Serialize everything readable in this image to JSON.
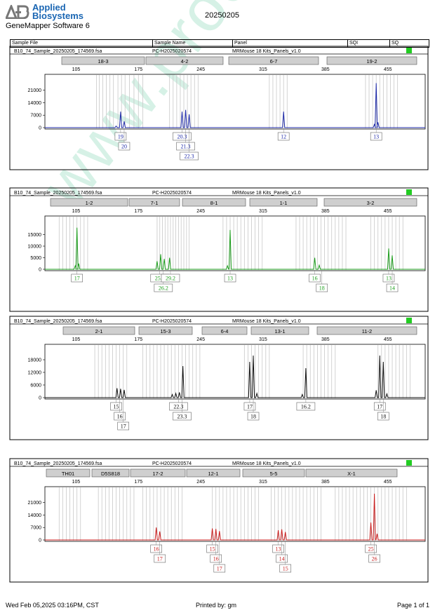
{
  "header": {
    "logo_text": "AB",
    "brand_line1": "Applied",
    "brand_line2": "Biosystems",
    "app_title": "GeneMapper Software 6",
    "run_date": "20250205"
  },
  "table_header": {
    "sample_file": "Sample File",
    "sample_name": "Sample Name",
    "panel": "Panel",
    "sqi": "SQI",
    "sq": "SQ"
  },
  "footer": {
    "date": "Wed Feb 05,2025 03:16PM, CST",
    "printed_by": "Printed by: gm",
    "page": "Page 1 of 1"
  },
  "watermark": "www.procell.com.cn",
  "colors": {
    "blue": "#1f2ba8",
    "green": "#1e9e1e",
    "black": "#111111",
    "red": "#c81e1e",
    "quality_ok": "#22cc22",
    "bin_bar": "#cfcfcf"
  },
  "chart_data": [
    {
      "type": "line",
      "dye": "blue",
      "sample_file": "B10_74_Sample_20250205_174569.fsa",
      "sample_name": "PC-H2025020574",
      "panel": "MRMouse 18 Kits_Panels_v1.0",
      "xlim": [
        70,
        497
      ],
      "x_ticks": [
        105,
        175,
        245,
        315,
        385,
        455
      ],
      "ylim": [
        0,
        26000
      ],
      "y_ticks": [
        0,
        7000,
        14000,
        21000
      ],
      "markers": [
        {
          "label": "18-3",
          "start": 88,
          "end": 206
        },
        {
          "label": "4-2",
          "start": 208,
          "end": 318
        },
        {
          "label": "6-7",
          "start": 326,
          "end": 454
        },
        {
          "label": "19-2",
          "start": 466,
          "end": 594
        }
      ],
      "bins": [
        128,
        131,
        135,
        139,
        143,
        147,
        152,
        156,
        160,
        165,
        170,
        175,
        180,
        210,
        214,
        218,
        222,
        226,
        230,
        234,
        238,
        242,
        322,
        326,
        330,
        334,
        338,
        342,
        430,
        434,
        438,
        442,
        446,
        450,
        454,
        458,
        462,
        466
      ],
      "peaks": [
        {
          "x": 155,
          "h": 9000
        },
        {
          "x": 159,
          "h": 3500
        },
        {
          "x": 150,
          "h": 900
        },
        {
          "x": 224,
          "h": 9000
        },
        {
          "x": 228,
          "h": 10000
        },
        {
          "x": 232,
          "h": 7500
        },
        {
          "x": 338,
          "h": 9000
        },
        {
          "x": 440,
          "h": 1800
        },
        {
          "x": 442,
          "h": 25000
        },
        {
          "x": 444,
          "h": 3000
        }
      ],
      "allele_calls": [
        {
          "label": "19",
          "x": 155,
          "row": 0
        },
        {
          "label": "20",
          "x": 159,
          "row": 1
        },
        {
          "label": "20.3",
          "x": 224,
          "row": 0
        },
        {
          "label": "21.3",
          "x": 228,
          "row": 1
        },
        {
          "label": "22.3",
          "x": 232,
          "row": 2
        },
        {
          "label": "12",
          "x": 338,
          "row": 0
        },
        {
          "label": "13",
          "x": 442,
          "row": 0
        }
      ]
    },
    {
      "type": "line",
      "dye": "green",
      "sample_file": "B10_74_Sample_20250205_174569.fsa",
      "sample_name": "PC-H2025020574",
      "panel": "MRMouse 18 Kits_Panels_v1.0",
      "xlim": [
        70,
        497
      ],
      "x_ticks": [
        105,
        175,
        245,
        315,
        385,
        455
      ],
      "ylim": [
        0,
        20000
      ],
      "y_ticks": [
        0,
        5000,
        10000,
        15000
      ],
      "markers": [
        {
          "label": "1-2",
          "start": 72,
          "end": 182
        },
        {
          "label": "7-1",
          "start": 184,
          "end": 256
        },
        {
          "label": "8-1",
          "start": 260,
          "end": 350
        },
        {
          "label": "1-1",
          "start": 356,
          "end": 452
        },
        {
          "label": "3-2",
          "start": 462,
          "end": 594
        }
      ],
      "bins": [
        86,
        90,
        94,
        98,
        102,
        106,
        110,
        114,
        118,
        196,
        199,
        202,
        205,
        208,
        211,
        214,
        217,
        220,
        223,
        226,
        229,
        232,
        270,
        274,
        278,
        282,
        286,
        290,
        294,
        298,
        302,
        306,
        310,
        314,
        352,
        356,
        360,
        364,
        368,
        372,
        376,
        380,
        384,
        388,
        392,
        396,
        400,
        404,
        408,
        436,
        440,
        444,
        448,
        452,
        456,
        460,
        464,
        468,
        472
      ],
      "peaks": [
        {
          "x": 106,
          "h": 18000
        },
        {
          "x": 108,
          "h": 2500
        },
        {
          "x": 104,
          "h": 1500
        },
        {
          "x": 196,
          "h": 3500
        },
        {
          "x": 200,
          "h": 6500
        },
        {
          "x": 204,
          "h": 4500
        },
        {
          "x": 210,
          "h": 5000
        },
        {
          "x": 278,
          "h": 17000
        },
        {
          "x": 275,
          "h": 1500
        },
        {
          "x": 373,
          "h": 5000
        },
        {
          "x": 378,
          "h": 1800
        },
        {
          "x": 456,
          "h": 9000
        },
        {
          "x": 460,
          "h": 6000
        }
      ],
      "allele_calls": [
        {
          "label": "17",
          "x": 106,
          "row": 0
        },
        {
          "label": "25.2",
          "x": 199,
          "row": 0
        },
        {
          "label": "26.2",
          "x": 203,
          "row": 1
        },
        {
          "label": "29.2",
          "x": 211,
          "row": 0
        },
        {
          "label": "13",
          "x": 278,
          "row": 0
        },
        {
          "label": "16",
          "x": 373,
          "row": 0
        },
        {
          "label": "18",
          "x": 381,
          "row": 1
        },
        {
          "label": "13",
          "x": 456,
          "row": 0
        },
        {
          "label": "14",
          "x": 460,
          "row": 1
        }
      ]
    },
    {
      "type": "line",
      "dye": "black",
      "sample_file": "B10_74_Sample_20250205_174569.fsa",
      "sample_name": "PC-H2025020574",
      "panel": "MRMouse 18 Kits_Panels_v1.0",
      "xlim": [
        70,
        497
      ],
      "x_ticks": [
        105,
        175,
        245,
        315,
        385,
        455
      ],
      "ylim": [
        0,
        22000
      ],
      "y_ticks": [
        0,
        6000,
        12000,
        18000
      ],
      "markers": [
        {
          "label": "2-1",
          "start": 90,
          "end": 192
        },
        {
          "label": "15-3",
          "start": 198,
          "end": 274
        },
        {
          "label": "6-4",
          "start": 288,
          "end": 352
        },
        {
          "label": "13-1",
          "start": 358,
          "end": 440
        },
        {
          "label": "11-2",
          "start": 452,
          "end": 594
        }
      ],
      "bins": [
        126,
        130,
        134,
        138,
        142,
        146,
        150,
        154,
        158,
        162,
        180,
        184,
        188,
        192,
        196,
        200,
        204,
        208,
        212,
        216,
        220,
        224,
        228,
        232,
        236,
        240,
        244,
        294,
        298,
        302,
        306,
        310,
        314,
        318,
        322,
        360,
        364,
        368,
        372,
        376,
        380,
        384,
        388,
        392,
        396,
        444,
        448,
        452,
        456,
        460,
        464,
        468,
        472,
        476,
        480
      ],
      "peaks": [
        {
          "x": 151,
          "h": 4500
        },
        {
          "x": 155,
          "h": 4200
        },
        {
          "x": 159,
          "h": 3700
        },
        {
          "x": 213,
          "h": 1500
        },
        {
          "x": 217,
          "h": 2000
        },
        {
          "x": 221,
          "h": 2500
        },
        {
          "x": 225,
          "h": 15000
        },
        {
          "x": 300,
          "h": 17000
        },
        {
          "x": 304,
          "h": 20000
        },
        {
          "x": 308,
          "h": 2000
        },
        {
          "x": 363,
          "h": 14000
        },
        {
          "x": 359,
          "h": 1500
        },
        {
          "x": 442,
          "h": 3500
        },
        {
          "x": 446,
          "h": 20000
        },
        {
          "x": 450,
          "h": 17000
        },
        {
          "x": 454,
          "h": 1800
        }
      ],
      "allele_calls": [
        {
          "label": "15",
          "x": 150,
          "row": 0
        },
        {
          "label": "16",
          "x": 154,
          "row": 1
        },
        {
          "label": "17",
          "x": 158,
          "row": 2
        },
        {
          "label": "22.3",
          "x": 220,
          "row": 0
        },
        {
          "label": "23.3",
          "x": 224,
          "row": 1
        },
        {
          "label": "17",
          "x": 300,
          "row": 0
        },
        {
          "label": "18",
          "x": 304,
          "row": 1
        },
        {
          "label": "16.2",
          "x": 363,
          "row": 0
        },
        {
          "label": "17",
          "x": 446,
          "row": 0
        },
        {
          "label": "18",
          "x": 450,
          "row": 1
        }
      ]
    },
    {
      "type": "line",
      "dye": "red",
      "sample_file": "B10_74_Sample_20250205_174569.fsa",
      "sample_name": "PC-H2025020574",
      "panel": "MRMouse 18 Kits_Panels_v1.0",
      "xlim": [
        70,
        497
      ],
      "x_ticks": [
        105,
        175,
        245,
        315,
        385,
        455
      ],
      "ylim": [
        0,
        26000
      ],
      "y_ticks": [
        0,
        7000,
        14000,
        21000
      ],
      "markers": [
        {
          "label": "TH01",
          "start": 66,
          "end": 128
        },
        {
          "label": "D5S818",
          "start": 131,
          "end": 184
        },
        {
          "label": "17-2",
          "start": 186,
          "end": 264
        },
        {
          "label": "12-1",
          "start": 266,
          "end": 342
        },
        {
          "label": "5-5",
          "start": 346,
          "end": 434
        },
        {
          "label": "X-1",
          "start": 436,
          "end": 566
        }
      ],
      "bins": [
        86,
        90,
        94,
        98,
        102,
        106,
        110,
        130,
        134,
        138,
        142,
        146,
        150,
        154,
        158,
        162,
        166,
        170,
        180,
        184,
        188,
        192,
        196,
        200,
        204,
        208,
        212,
        216,
        220,
        224,
        258,
        262,
        266,
        270,
        274,
        278,
        282,
        286,
        290,
        294,
        298,
        302,
        306,
        310,
        324,
        328,
        332,
        336,
        340,
        344,
        348,
        352,
        356,
        360,
        364,
        368,
        372,
        376,
        380,
        396,
        400,
        404,
        408,
        412,
        416,
        420,
        424,
        428,
        432,
        436,
        440,
        444,
        448,
        452,
        456,
        460,
        464,
        468,
        472,
        476
      ],
      "peaks": [
        {
          "x": 195,
          "h": 7000
        },
        {
          "x": 199,
          "h": 4800
        },
        {
          "x": 258,
          "h": 6500
        },
        {
          "x": 262,
          "h": 6200
        },
        {
          "x": 266,
          "h": 5000
        },
        {
          "x": 332,
          "h": 5500
        },
        {
          "x": 336,
          "h": 6000
        },
        {
          "x": 340,
          "h": 4500
        },
        {
          "x": 436,
          "h": 9800
        },
        {
          "x": 440,
          "h": 26000
        },
        {
          "x": 443,
          "h": 3500
        }
      ],
      "allele_calls": [
        {
          "label": "16",
          "x": 195,
          "row": 0
        },
        {
          "label": "17",
          "x": 199,
          "row": 1
        },
        {
          "label": "15",
          "x": 258,
          "row": 0
        },
        {
          "label": "16",
          "x": 262,
          "row": 1
        },
        {
          "label": "17",
          "x": 266,
          "row": 2
        },
        {
          "label": "13",
          "x": 332,
          "row": 0
        },
        {
          "label": "14",
          "x": 336,
          "row": 1
        },
        {
          "label": "15",
          "x": 340,
          "row": 2
        },
        {
          "label": "25",
          "x": 436,
          "row": 0
        },
        {
          "label": "26",
          "x": 440,
          "row": 1
        }
      ]
    }
  ]
}
